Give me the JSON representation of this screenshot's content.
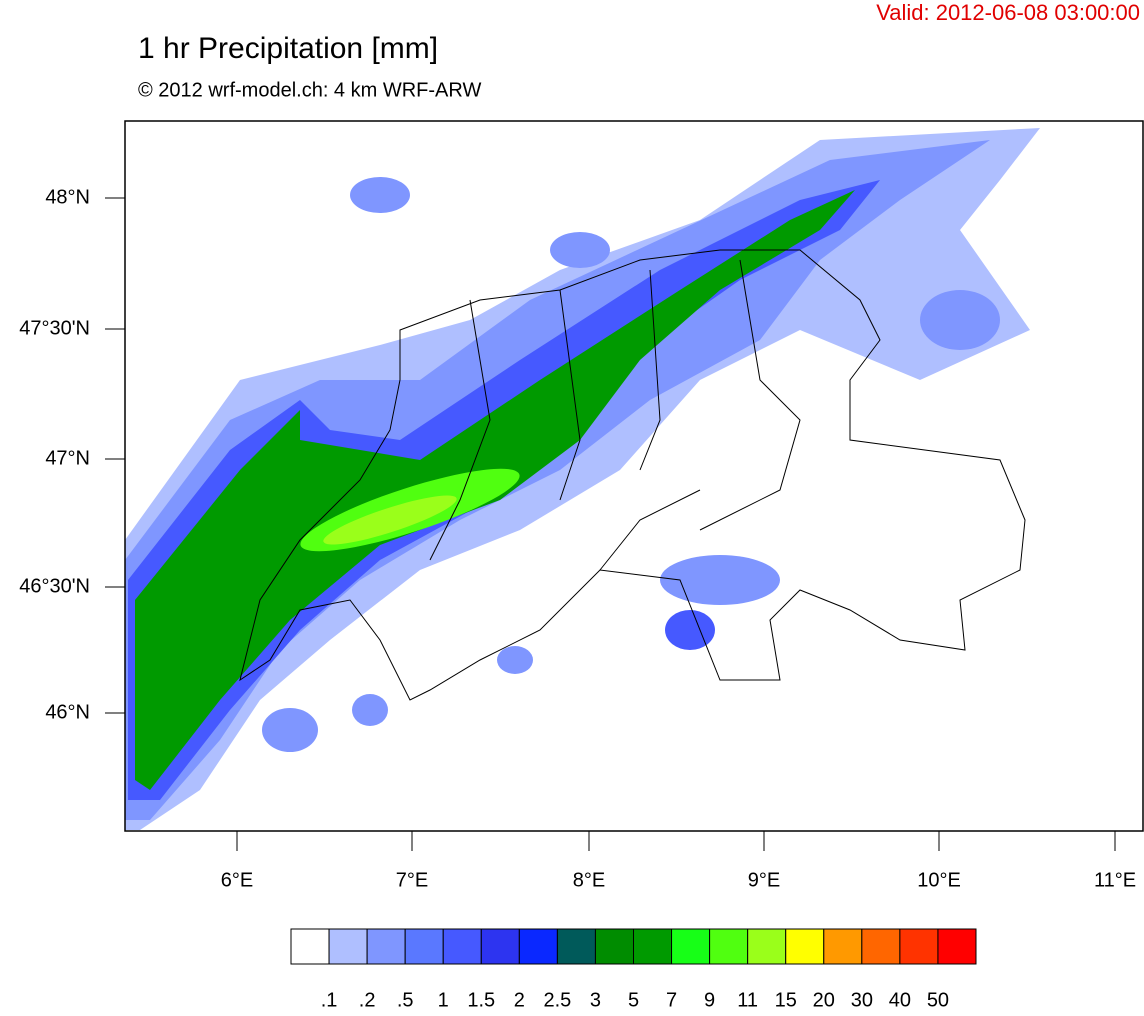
{
  "header": {
    "valid": "Valid: 2012-06-08 03:00:00",
    "title": "1 hr Precipitation [mm]",
    "subtitle": "© 2012 wrf-model.ch: 4 km WRF-ARW"
  },
  "map": {
    "lat_labels": [
      "48°N",
      "47°30'N",
      "47°N",
      "46°30'N",
      "46°N"
    ],
    "lon_labels": [
      "6°E",
      "7°E",
      "8°E",
      "9°E",
      "10°E",
      "11°E"
    ]
  },
  "colorbar": {
    "colors": [
      "#ffffff",
      "#afbfff",
      "#7f96ff",
      "#5a78ff",
      "#4659ff",
      "#2d34f0",
      "#0a28ff",
      "#005a5a",
      "#008c00",
      "#009a00",
      "#17ff17",
      "#50ff10",
      "#9aff1a",
      "#ffff00",
      "#ff9900",
      "#ff6600",
      "#ff3300",
      "#ff0000"
    ],
    "labels": [
      ".1",
      ".2",
      ".5",
      "1",
      "1.5",
      "2",
      "2.5",
      "3",
      "5",
      "7",
      "9",
      "11",
      "15",
      "20",
      "30",
      "40",
      "50"
    ]
  }
}
